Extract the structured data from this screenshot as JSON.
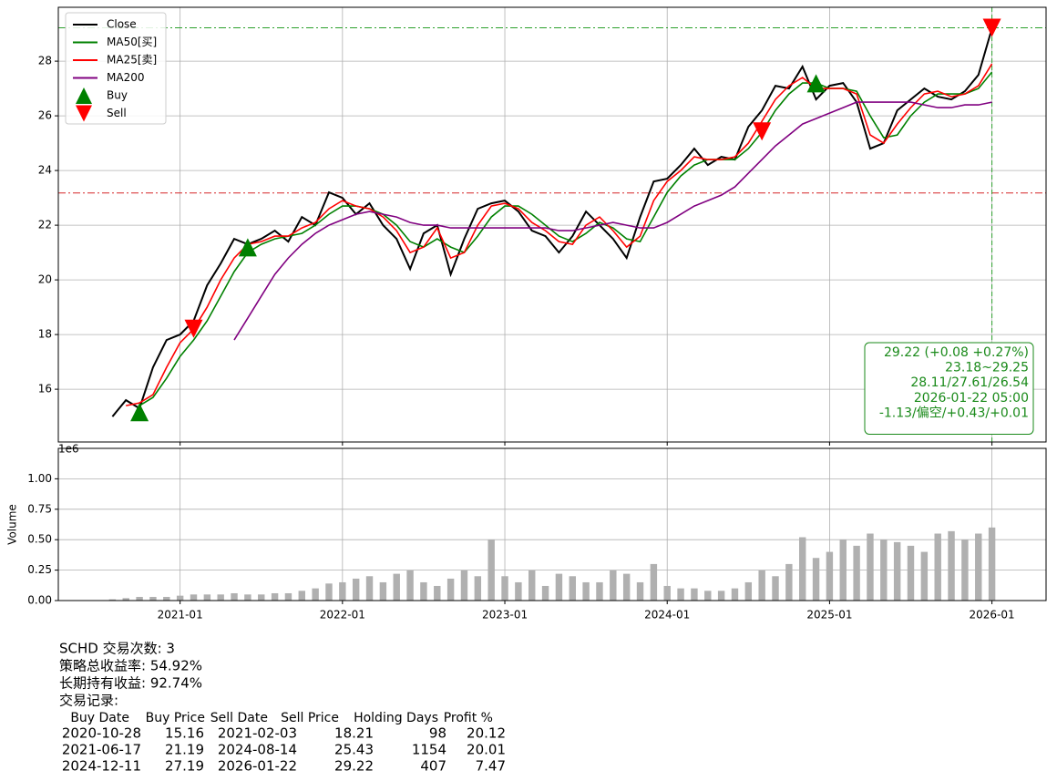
{
  "chart_data": [
    {
      "type": "line",
      "x": [
        "2020-08",
        "2020-09",
        "2020-10",
        "2020-11",
        "2020-12",
        "2021-01",
        "2021-02",
        "2021-03",
        "2021-04",
        "2021-05",
        "2021-06",
        "2021-07",
        "2021-08",
        "2021-09",
        "2021-10",
        "2021-11",
        "2021-12",
        "2022-01",
        "2022-02",
        "2022-03",
        "2022-04",
        "2022-05",
        "2022-06",
        "2022-07",
        "2022-08",
        "2022-09",
        "2022-10",
        "2022-11",
        "2022-12",
        "2023-01",
        "2023-02",
        "2023-03",
        "2023-04",
        "2023-05",
        "2023-06",
        "2023-07",
        "2023-08",
        "2023-09",
        "2023-10",
        "2023-11",
        "2023-12",
        "2024-01",
        "2024-02",
        "2024-03",
        "2024-04",
        "2024-05",
        "2024-06",
        "2024-07",
        "2024-08",
        "2024-09",
        "2024-10",
        "2024-11",
        "2024-12",
        "2025-01",
        "2025-02",
        "2025-03",
        "2025-04",
        "2025-05",
        "2025-06",
        "2025-07",
        "2025-08",
        "2025-09",
        "2025-10",
        "2025-11",
        "2025-12",
        "2026-01"
      ],
      "series": [
        {
          "name": "Close",
          "color": "#000000",
          "values": [
            15.0,
            15.6,
            15.3,
            16.8,
            17.8,
            18.0,
            18.5,
            19.8,
            20.6,
            21.5,
            21.3,
            21.5,
            21.8,
            21.4,
            22.3,
            22.0,
            23.2,
            23.0,
            22.4,
            22.8,
            22.0,
            21.5,
            20.4,
            21.7,
            22.0,
            20.2,
            21.5,
            22.6,
            22.8,
            22.9,
            22.5,
            21.8,
            21.6,
            21.0,
            21.6,
            22.5,
            22.0,
            21.5,
            20.8,
            22.3,
            23.6,
            23.7,
            24.2,
            24.8,
            24.2,
            24.5,
            24.4,
            25.6,
            26.2,
            27.1,
            27.0,
            27.8,
            26.6,
            27.1,
            27.2,
            26.5,
            24.8,
            25.0,
            26.2,
            26.6,
            27.0,
            26.7,
            26.6,
            26.9,
            27.5,
            29.2
          ]
        },
        {
          "name": "MA50[买]",
          "color": "#008000",
          "values": [
            null,
            null,
            15.4,
            15.7,
            16.4,
            17.2,
            17.8,
            18.5,
            19.4,
            20.3,
            21.0,
            21.3,
            21.5,
            21.6,
            21.7,
            22.0,
            22.4,
            22.7,
            22.7,
            22.6,
            22.4,
            22.0,
            21.4,
            21.2,
            21.5,
            21.2,
            21.0,
            21.6,
            22.3,
            22.7,
            22.7,
            22.4,
            22.0,
            21.6,
            21.4,
            21.7,
            22.1,
            21.9,
            21.5,
            21.4,
            22.3,
            23.2,
            23.8,
            24.2,
            24.4,
            24.4,
            24.4,
            24.8,
            25.4,
            26.2,
            26.8,
            27.2,
            27.2,
            27.0,
            27.0,
            26.9,
            26.0,
            25.2,
            25.3,
            26.0,
            26.5,
            26.8,
            26.8,
            26.8,
            27.0,
            27.6
          ]
        },
        {
          "name": "MA25[卖]",
          "color": "#ff0000",
          "values": [
            null,
            15.4,
            15.5,
            15.8,
            16.8,
            17.7,
            18.2,
            19.0,
            20.0,
            20.8,
            21.3,
            21.4,
            21.6,
            21.6,
            21.9,
            22.1,
            22.6,
            22.9,
            22.7,
            22.6,
            22.3,
            21.8,
            21.0,
            21.2,
            21.9,
            20.8,
            21.0,
            22.0,
            22.7,
            22.8,
            22.6,
            22.1,
            21.8,
            21.4,
            21.3,
            22.0,
            22.3,
            21.8,
            21.2,
            21.6,
            22.9,
            23.6,
            24.0,
            24.5,
            24.4,
            24.4,
            24.5,
            25.0,
            25.8,
            26.6,
            27.1,
            27.4,
            27.0,
            27.0,
            27.0,
            26.8,
            25.3,
            25.0,
            25.7,
            26.3,
            26.8,
            26.9,
            26.7,
            26.8,
            27.1,
            27.9
          ]
        },
        {
          "name": "MA200",
          "color": "#800080",
          "values": [
            null,
            null,
            null,
            null,
            null,
            null,
            null,
            null,
            null,
            17.8,
            18.6,
            19.4,
            20.2,
            20.8,
            21.3,
            21.7,
            22.0,
            22.2,
            22.4,
            22.5,
            22.4,
            22.3,
            22.1,
            22.0,
            22.0,
            21.9,
            21.9,
            21.9,
            21.9,
            21.9,
            21.9,
            21.9,
            21.9,
            21.8,
            21.8,
            21.9,
            22.0,
            22.1,
            22.0,
            21.9,
            21.9,
            22.1,
            22.4,
            22.7,
            22.9,
            23.1,
            23.4,
            23.9,
            24.4,
            24.9,
            25.3,
            25.7,
            25.9,
            26.1,
            26.3,
            26.5,
            26.5,
            26.5,
            26.5,
            26.5,
            26.4,
            26.3,
            26.3,
            26.4,
            26.4,
            26.5
          ]
        },
        {
          "name": "Buy",
          "color": "#008000",
          "marker": "up",
          "x": [
            "2020-10",
            "2021-06",
            "2024-12"
          ],
          "values": [
            15.16,
            21.19,
            27.19
          ]
        },
        {
          "name": "Sell",
          "color": "#ff0000",
          "marker": "down",
          "x": [
            "2021-02",
            "2024-08",
            "2026-01"
          ],
          "values": [
            18.21,
            25.43,
            29.22
          ]
        }
      ],
      "hlines": [
        {
          "value": 29.22,
          "color": "#2ca02c"
        },
        {
          "value": 23.18,
          "color": "#d62728"
        }
      ],
      "vline": {
        "x": "2026-01",
        "color": "#2ca02c"
      },
      "annotation": [
        "29.22 (+0.08 +0.27%)",
        "23.18~29.25",
        "28.11/27.61/26.54",
        "2026-01-22 05:00",
        "-1.13/偏空/+0.43/+0.01"
      ],
      "annotation_color": "#1a8a1a",
      "xlim": [
        "2020-04",
        "2026-05"
      ],
      "xticks": [
        "2021-01",
        "2022-01",
        "2023-01",
        "2024-01",
        "2025-01",
        "2026-01"
      ],
      "ylim": [
        14.07,
        29.97
      ],
      "yticks": [
        16,
        18,
        20,
        22,
        24,
        26,
        28
      ],
      "grid": true,
      "legend": "upper left"
    },
    {
      "type": "bar",
      "ylabel": "Volume",
      "offset_label": "1e6",
      "color": "#b0b0b0",
      "x": [
        "2020-08",
        "2020-09",
        "2020-10",
        "2020-11",
        "2020-12",
        "2021-01",
        "2021-02",
        "2021-03",
        "2021-04",
        "2021-05",
        "2021-06",
        "2021-07",
        "2021-08",
        "2021-09",
        "2021-10",
        "2021-11",
        "2021-12",
        "2022-01",
        "2022-02",
        "2022-03",
        "2022-04",
        "2022-05",
        "2022-06",
        "2022-07",
        "2022-08",
        "2022-09",
        "2022-10",
        "2022-11",
        "2022-12",
        "2023-01",
        "2023-02",
        "2023-03",
        "2023-04",
        "2023-05",
        "2023-06",
        "2023-07",
        "2023-08",
        "2023-09",
        "2023-10",
        "2023-11",
        "2023-12",
        "2024-01",
        "2024-02",
        "2024-03",
        "2024-04",
        "2024-05",
        "2024-06",
        "2024-07",
        "2024-08",
        "2024-09",
        "2024-10",
        "2024-11",
        "2024-12",
        "2025-01",
        "2025-02",
        "2025-03",
        "2025-04",
        "2025-05",
        "2025-06",
        "2025-07",
        "2025-08",
        "2025-09",
        "2025-10",
        "2025-11",
        "2025-12",
        "2026-01"
      ],
      "values": [
        0.01,
        0.02,
        0.03,
        0.03,
        0.03,
        0.04,
        0.05,
        0.05,
        0.05,
        0.06,
        0.05,
        0.05,
        0.06,
        0.06,
        0.08,
        0.1,
        0.14,
        0.15,
        0.18,
        0.2,
        0.15,
        0.22,
        0.25,
        0.15,
        0.12,
        0.18,
        0.25,
        0.2,
        0.5,
        0.2,
        0.15,
        0.25,
        0.12,
        0.22,
        0.2,
        0.15,
        0.15,
        0.25,
        0.22,
        0.15,
        0.3,
        0.12,
        0.1,
        0.1,
        0.08,
        0.08,
        0.1,
        0.15,
        0.25,
        0.2,
        0.3,
        0.52,
        0.35,
        0.4,
        0.5,
        0.45,
        0.55,
        0.5,
        0.48,
        0.45,
        0.4,
        0.55,
        0.57,
        0.5,
        0.55,
        0.6
      ],
      "xlim": [
        "2020-04",
        "2026-05"
      ],
      "xticks": [
        "2021-01",
        "2022-01",
        "2023-01",
        "2024-01",
        "2025-01",
        "2026-01"
      ],
      "ylim": [
        0,
        1.25
      ],
      "yticks": [
        {
          "value": 0,
          "label": "0.00"
        },
        {
          "value": 0.25,
          "label": "0.25"
        },
        {
          "value": 0.5,
          "label": "0.50"
        },
        {
          "value": 0.75,
          "label": "0.75"
        },
        {
          "value": 1,
          "label": "1.00"
        }
      ],
      "grid": true
    }
  ],
  "report": {
    "lines": [
      "SCHD 交易次数: 3",
      "策略总收益率: 54.92%",
      "长期持有收益: 92.74%",
      "交易记录:"
    ],
    "columns": [
      "Buy Date",
      "Buy Price",
      "Sell Date",
      "Sell Price",
      "Holding Days",
      "Profit %"
    ],
    "rows": [
      [
        "2020-10-28",
        15.16,
        "2021-02-03",
        18.21,
        98,
        20.12
      ],
      [
        "2021-06-17",
        21.19,
        "2024-08-14",
        25.43,
        1154,
        20.01
      ],
      [
        "2024-12-11",
        27.19,
        "2026-01-22",
        29.22,
        407,
        7.47
      ]
    ]
  }
}
